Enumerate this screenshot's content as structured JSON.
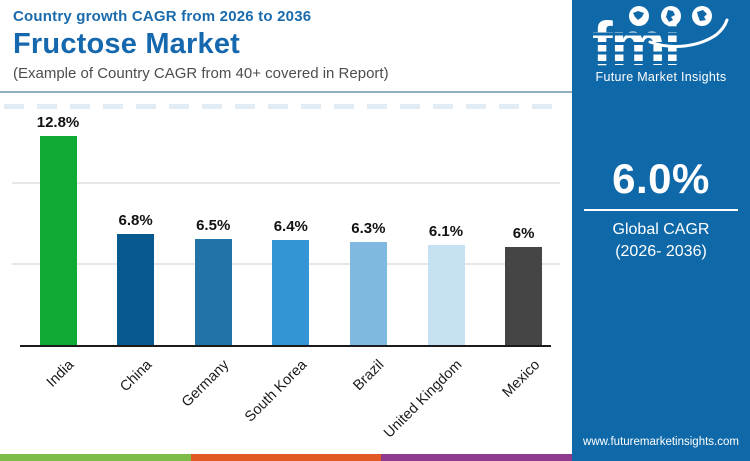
{
  "header": {
    "subtitle_top": "Country growth CAGR from 2026 to 2036",
    "title": "Fructose Market",
    "subtitle_bottom": "(Example of Country CAGR from 40+ covered in Report)"
  },
  "chart_data": {
    "type": "bar",
    "title": "Fructose Market — Country growth CAGR from 2026 to 2036",
    "categories": [
      "India",
      "China",
      "Germany",
      "South Korea",
      "Brazil",
      "United Kingdom",
      "Mexico"
    ],
    "values": [
      12.8,
      6.8,
      6.5,
      6.4,
      6.3,
      6.1,
      6.0
    ],
    "value_labels": [
      "12.8%",
      "6.8%",
      "6.5%",
      "6.4%",
      "6.3%",
      "6.1%",
      "6%"
    ],
    "bar_colors": [
      "#0FAA33",
      "#075A8F",
      "#2173A8",
      "#3595D4",
      "#7FB9DF",
      "#C6E1F1",
      "#454545"
    ],
    "xlabel": "",
    "ylabel": "",
    "ylim": [
      0,
      15
    ],
    "gridline_values": [
      5,
      10
    ],
    "grid": "horizontal-only",
    "legend": "none",
    "value_label_color": "#111111",
    "axis_color": "#1B1B1B",
    "gridline_color": "#E5E7EA"
  },
  "panel": {
    "background_color": "#0F69A8",
    "logo": {
      "text": "fmi",
      "tagline": "Future Market Insights",
      "globe_icons": [
        "americas-globe-icon",
        "europe-globe-icon",
        "asia-globe-icon"
      ]
    },
    "stat": {
      "value": "6.0%",
      "label_line1": "Global CAGR",
      "label_line2": "(2026- 2036)"
    },
    "website": "www.futuremarketinsights.com"
  },
  "footer_strip": {
    "colors": [
      "#7EBC4A",
      "#E15A26",
      "#8F3A8F"
    ]
  }
}
